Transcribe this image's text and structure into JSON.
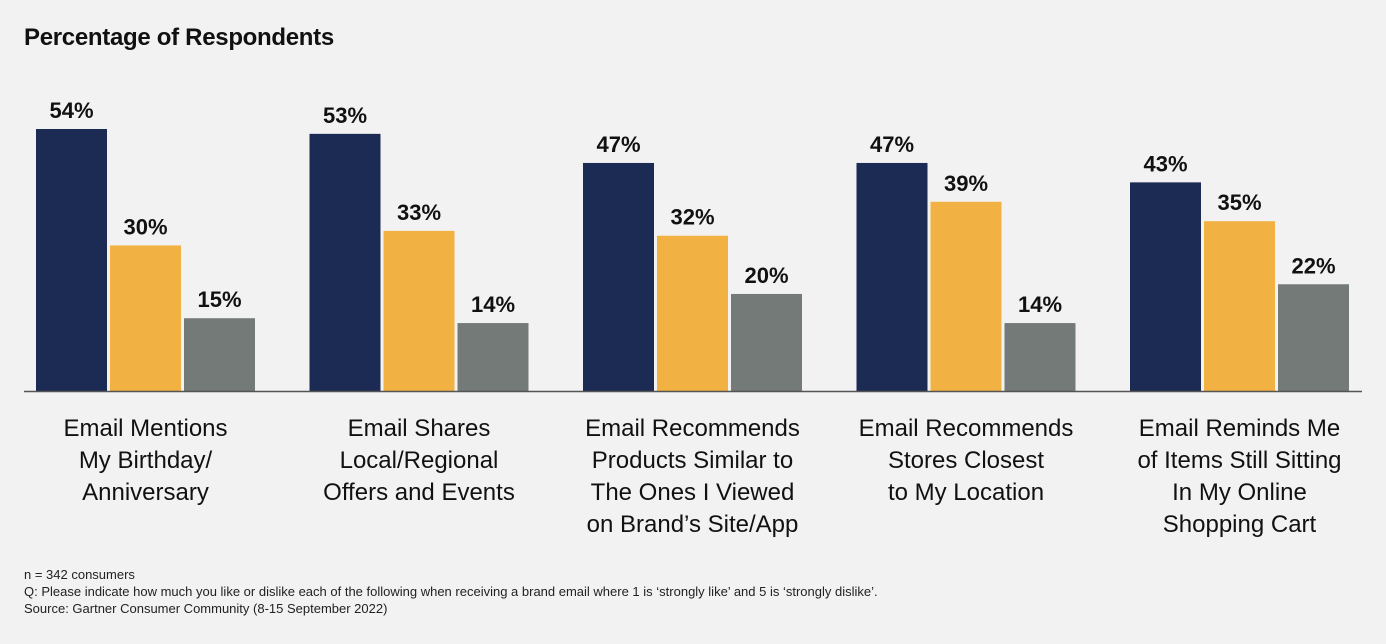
{
  "chart_data": {
    "type": "bar",
    "title": "Percentage of Respondents",
    "categories": [
      [
        "Email Mentions",
        "My Birthday/",
        "Anniversary"
      ],
      [
        "Email Shares",
        "Local/Regional",
        "Offers and Events"
      ],
      [
        "Email Recommends",
        "Products Similar to",
        "The Ones I Viewed",
        "on Brand’s Site/App"
      ],
      [
        "Email Recommends",
        "Stores Closest",
        "to My Location"
      ],
      [
        "Email Reminds Me",
        "of Items Still Sitting",
        "In My Online",
        "Shopping Cart"
      ]
    ],
    "series": [
      {
        "name": "series-1",
        "color": "#1c2b54",
        "values": [
          54,
          53,
          47,
          47,
          43
        ]
      },
      {
        "name": "series-2",
        "color": "#f2b143",
        "values": [
          30,
          33,
          32,
          39,
          35
        ]
      },
      {
        "name": "series-3",
        "color": "#737a78",
        "values": [
          15,
          14,
          20,
          14,
          22
        ]
      }
    ],
    "value_suffix": "%",
    "xlabel": "",
    "ylabel": "",
    "ylim": [
      0,
      54
    ],
    "grid": false,
    "legend": "none"
  },
  "footnotes": {
    "sample": "n = 342 consumers",
    "question": "Q: Please indicate how much you like or dislike each of the following when receiving a brand email where 1 is ‘strongly like’ and 5 is ‘strongly dislike’.",
    "source": "Source: Gartner Consumer Community (8-15 September 2022)"
  }
}
